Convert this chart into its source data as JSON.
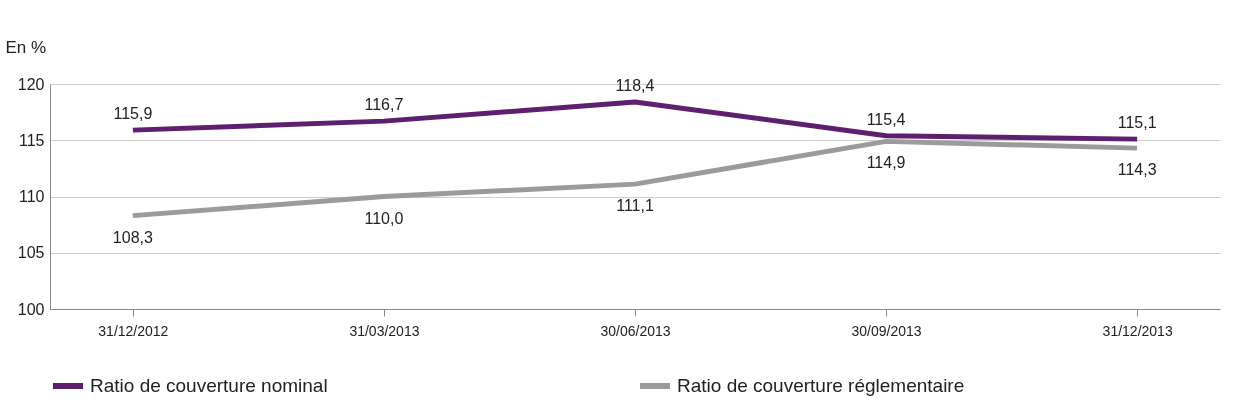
{
  "chart_data": {
    "type": "line",
    "ylabel": "En %",
    "categories": [
      "31/12/2012",
      "31/03/2013",
      "30/06/2013",
      "30/09/2013",
      "31/12/2013"
    ],
    "series": [
      {
        "name": "Ratio de couverture nominal",
        "color": "#5e1f6e",
        "values": [
          115.9,
          116.7,
          118.4,
          115.4,
          115.1
        ],
        "value_labels": [
          "115,9",
          "116,7",
          "118,4",
          "115,4",
          "115,1"
        ]
      },
      {
        "name": "Ratio de couverture réglementaire",
        "color": "#9b9b9d",
        "values": [
          108.3,
          110.0,
          111.1,
          114.9,
          114.3
        ],
        "value_labels": [
          "108,3",
          "110,0",
          "111,1",
          "114,9",
          "114,3"
        ]
      }
    ],
    "ylim": [
      100,
      120
    ],
    "yticks": [
      100,
      105,
      110,
      115,
      120
    ],
    "grid": "y",
    "legend": "bottom",
    "marker": "none",
    "line_style": "solid"
  }
}
